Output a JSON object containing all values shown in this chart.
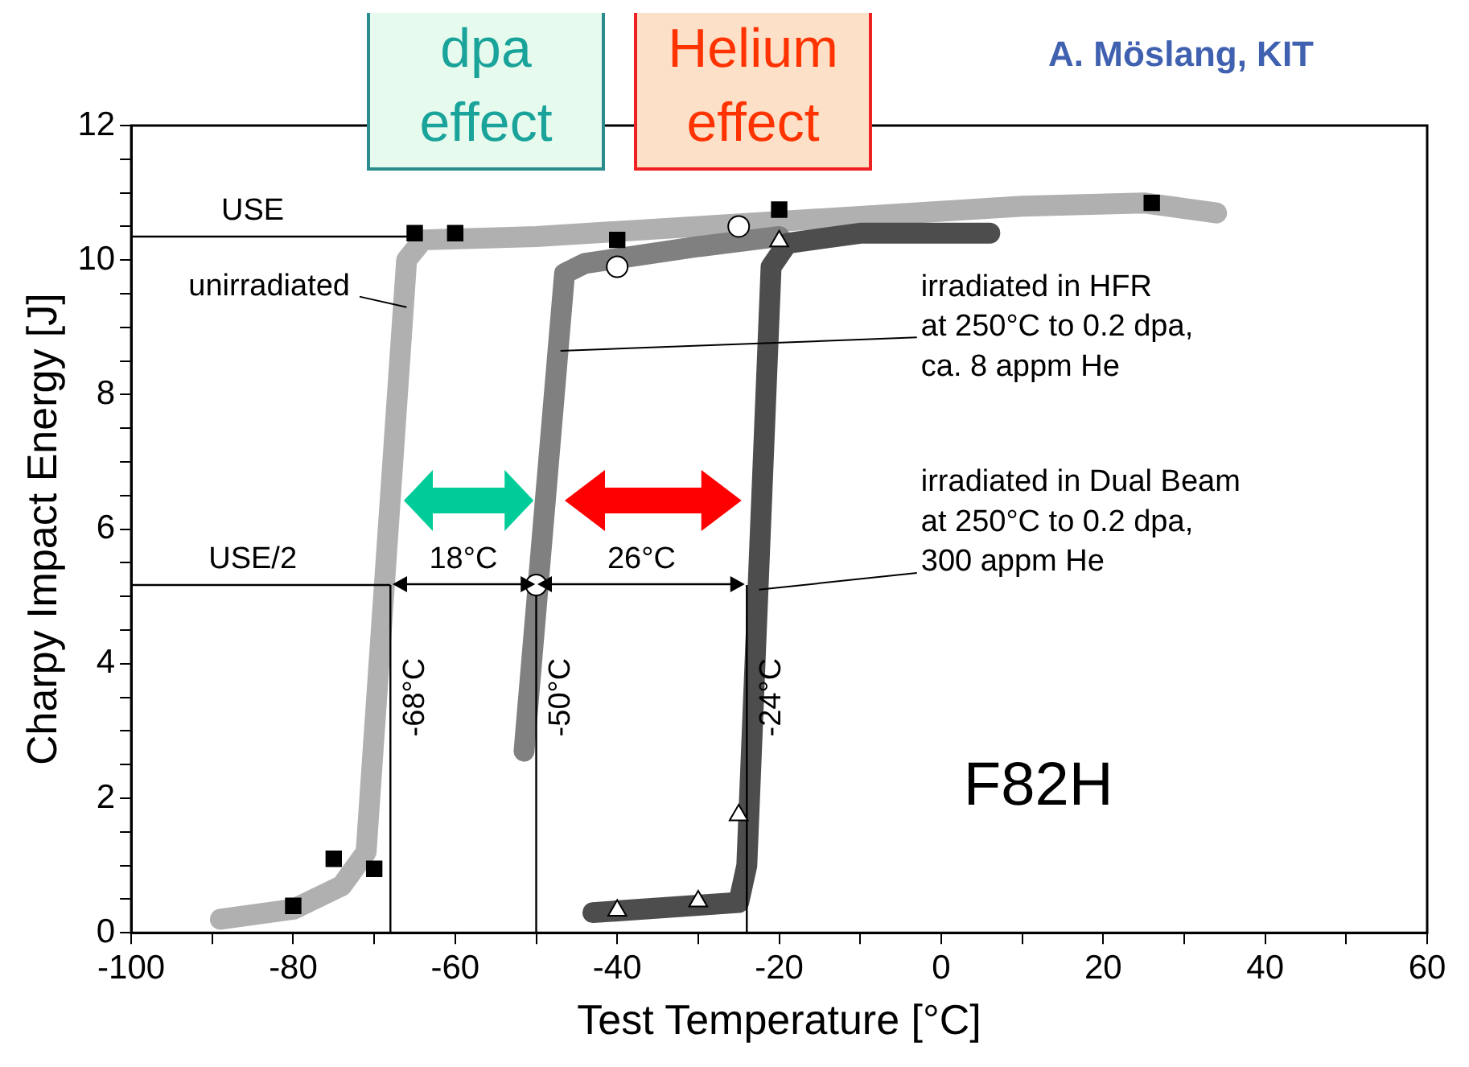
{
  "chart_data": {
    "type": "line",
    "xlabel": "Test Temperature [°C]",
    "ylabel": "Charpy Impact Energy [J]",
    "xlim": [
      -100,
      60
    ],
    "ylim": [
      0,
      12
    ],
    "xticks": [
      -100,
      {
        "value": -90,
        "label": null
      },
      -80,
      {
        "value": -70,
        "label": null
      },
      -60,
      {
        "value": -50,
        "label": null
      },
      -40,
      {
        "value": -30,
        "label": null
      },
      -20,
      {
        "value": -10,
        "label": null
      },
      0,
      {
        "value": 10,
        "label": null
      },
      20,
      {
        "value": 30,
        "label": null
      },
      40,
      {
        "value": 50,
        "label": null
      },
      60
    ],
    "yticks": [
      0,
      {
        "value": 0.5,
        "label": null
      },
      {
        "value": 1,
        "label": null
      },
      {
        "value": 1.5,
        "label": null
      },
      2,
      {
        "value": 2.5,
        "label": null
      },
      {
        "value": 3,
        "label": null
      },
      {
        "value": 3.5,
        "label": null
      },
      4,
      {
        "value": 4.5,
        "label": null
      },
      {
        "value": 5,
        "label": null
      },
      {
        "value": 5.5,
        "label": null
      },
      6,
      {
        "value": 6.5,
        "label": null
      },
      {
        "value": 7,
        "label": null
      },
      {
        "value": 7.5,
        "label": null
      },
      8,
      {
        "value": 8.5,
        "label": null
      },
      {
        "value": 9,
        "label": null
      },
      {
        "value": 9.5,
        "label": null
      },
      10,
      {
        "value": 10.5,
        "label": null
      },
      {
        "value": 11,
        "label": null
      },
      {
        "value": 11.5,
        "label": null
      },
      12
    ],
    "grid": false,
    "legend": false,
    "series": [
      {
        "color": "#b0b0b0",
        "marker": "none",
        "x": [
          -89,
          -80,
          -74,
          -71,
          -66,
          -64,
          -50,
          -30,
          -10,
          10,
          25,
          34
        ],
        "values": [
          0.2,
          0.35,
          0.7,
          1.2,
          10.0,
          10.3,
          10.35,
          10.5,
          10.65,
          10.8,
          10.85,
          10.7
        ]
      },
      {
        "color": "#808080",
        "marker": "none",
        "x": [
          -51.5,
          -46.5,
          -44,
          -30,
          -20
        ],
        "values": [
          2.7,
          9.8,
          9.95,
          10.2,
          10.35
        ]
      },
      {
        "color": "#4d4d4d",
        "marker": "none",
        "x": [
          -43,
          -25,
          -24,
          -21,
          -19,
          -10,
          6
        ],
        "values": [
          0.3,
          0.45,
          1.0,
          9.9,
          10.25,
          10.4,
          10.4
        ]
      },
      {
        "color": "#000000",
        "marker": "none",
        "x": [
          -100,
          -65
        ],
        "values": [
          10.35,
          10.35
        ]
      },
      {
        "color": "#000000",
        "marker": "none",
        "x": [
          -100,
          -68
        ],
        "values": [
          5.17,
          5.17
        ]
      },
      {
        "color": "#000000",
        "marker": "none",
        "x": [
          -68,
          -68
        ],
        "values": [
          0,
          5.17
        ]
      },
      {
        "color": "#000000",
        "marker": "none",
        "x": [
          -50,
          -50
        ],
        "values": [
          0,
          5.17
        ]
      },
      {
        "color": "#000000",
        "marker": "none",
        "x": [
          -24,
          -24
        ],
        "values": [
          0,
          5.17
        ]
      },
      {
        "type": "scatter",
        "color": "#000000",
        "marker": "square",
        "x": [
          -80,
          -75,
          -70,
          -65,
          -60,
          -40,
          -20,
          26
        ],
        "values": [
          0.4,
          1.1,
          0.95,
          10.4,
          10.4,
          10.3,
          10.75,
          10.85
        ]
      },
      {
        "type": "scatter",
        "color": "#ffffff",
        "marker": "circle",
        "x": [
          -50,
          -40,
          -25
        ],
        "values": [
          5.17,
          9.9,
          10.5
        ]
      },
      {
        "type": "scatter",
        "color": "#ffffff",
        "marker": "triangle",
        "x": [
          -40,
          -30,
          -25,
          -20
        ],
        "values": [
          0.33,
          0.47,
          1.75,
          10.28
        ]
      }
    ],
    "annotations": [
      "dpa\neffect",
      "Helium\neffect",
      "A. Möslang, KIT",
      {
        "text": "USE",
        "x": -85,
        "y": 10.35
      },
      {
        "text": "USE/2",
        "x": -85,
        "y": 5.17
      },
      {
        "text": "unirradiated",
        "x": -66,
        "y": 9.3
      },
      {
        "text": "irradiated in HFR\nat 250°C to 0.2 dpa,\nca. 8 appm He",
        "x": -47,
        "y": 8.65
      },
      {
        "text": "irradiated in Dual Beam\nat 250°C to 0.2 dpa,\n300 appm He",
        "x": -22.5,
        "y": 5.1
      },
      "18°C",
      "26°C",
      {
        "text": "-68°C",
        "x": -68,
        "y": 3.5
      },
      {
        "text": "-50°C",
        "x": -50,
        "y": 3.5
      },
      {
        "text": "-24°C",
        "x": -24,
        "y": 3.5
      },
      "F82H"
    ]
  }
}
